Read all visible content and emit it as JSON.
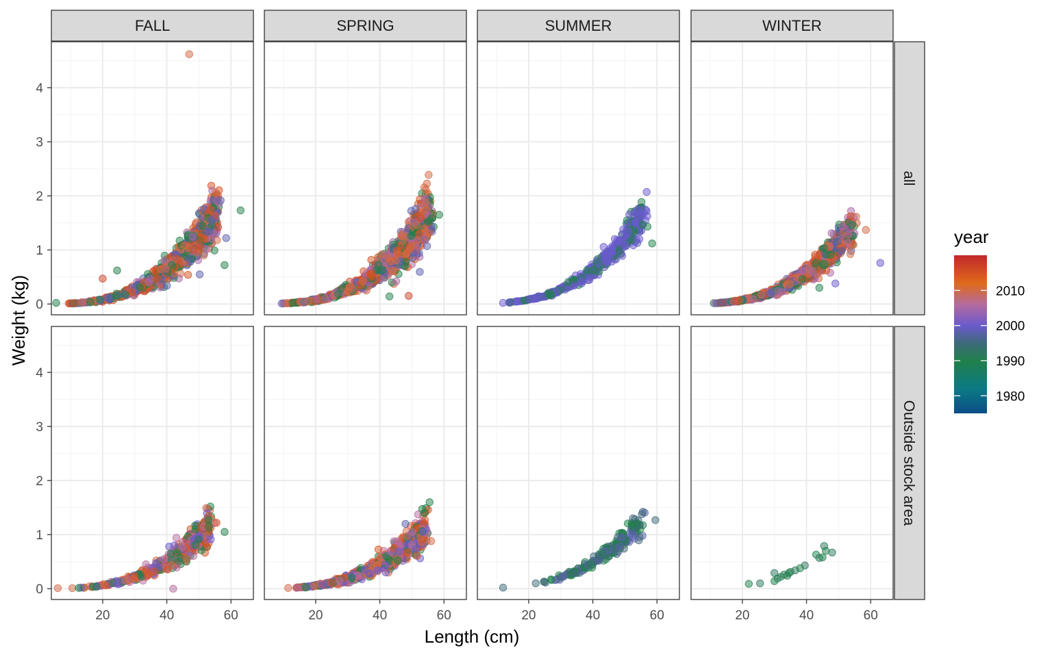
{
  "chart_data": {
    "type": "scatter",
    "facet_cols": [
      "FALL",
      "SPRING",
      "SUMMER",
      "WINTER"
    ],
    "facet_rows": [
      "all",
      "Outside stock area"
    ],
    "xlabel": "Length (cm)",
    "ylabel": "Weight (kg)",
    "xlim": [
      4,
      67
    ],
    "ylim": [
      -0.2,
      4.85
    ],
    "x_ticks": [
      20,
      40,
      60
    ],
    "y_ticks": [
      0,
      1,
      2,
      3,
      4
    ],
    "grid": true,
    "point_alpha": 0.5,
    "legend": {
      "title": "year",
      "placement": "right",
      "type": "colorbar",
      "range": [
        1975,
        2020
      ],
      "ticks": [
        1980,
        1990,
        2000,
        2010
      ],
      "stops": [
        {
          "year": 1975,
          "color": "#0b4d87"
        },
        {
          "year": 1982,
          "color": "#0b7a84"
        },
        {
          "year": 1990,
          "color": "#20804a"
        },
        {
          "year": 1995,
          "color": "#3f6a7a"
        },
        {
          "year": 2000,
          "color": "#6a5acd"
        },
        {
          "year": 2006,
          "color": "#b56b9d"
        },
        {
          "year": 2012,
          "color": "#e06a1b"
        },
        {
          "year": 2020,
          "color": "#c0282b"
        }
      ]
    },
    "panels": [
      {
        "col": "FALL",
        "row": "all",
        "xmin": 8,
        "xmax": 56,
        "a": 1.05e-05,
        "b": 2.98,
        "spread": 0.16,
        "n": 900,
        "years": [
          2015,
          2010,
          2005,
          1998,
          1990
        ],
        "outliers": [
          {
            "x": 47,
            "y": 4.62,
            "year": 2010
          },
          {
            "x": 63,
            "y": 1.73,
            "year": 1990
          },
          {
            "x": 5.5,
            "y": 0.02,
            "year": 1990
          },
          {
            "x": 20,
            "y": 0.47,
            "year": 2017
          },
          {
            "x": 24.5,
            "y": 0.62,
            "year": 1990
          },
          {
            "x": 54,
            "y": 1.55,
            "year": 1998
          },
          {
            "x": 56,
            "y": 1.42,
            "year": 2017
          },
          {
            "x": 58.5,
            "y": 1.22,
            "year": 1998
          },
          {
            "x": 58,
            "y": 0.72,
            "year": 1990
          }
        ]
      },
      {
        "col": "SPRING",
        "row": "all",
        "xmin": 8,
        "xmax": 56,
        "a": 1.05e-05,
        "b": 2.98,
        "spread": 0.17,
        "n": 900,
        "years": [
          2015,
          2010,
          2005,
          1998,
          1990
        ],
        "outliers": [
          {
            "x": 58.5,
            "y": 1.65,
            "year": 1990
          },
          {
            "x": 55,
            "y": 1.52,
            "year": 1990
          },
          {
            "x": 54,
            "y": 1.4,
            "year": 2010
          },
          {
            "x": 49,
            "y": 0.15,
            "year": 2017
          },
          {
            "x": 43,
            "y": 0.14,
            "year": 1990
          }
        ]
      },
      {
        "col": "SUMMER",
        "row": "all",
        "xmin": 11,
        "xmax": 56,
        "a": 1.05e-05,
        "b": 2.98,
        "spread": 0.1,
        "n": 420,
        "years": [
          2000,
          2000,
          2000,
          1998,
          1990
        ],
        "outliers": [
          {
            "x": 58.5,
            "y": 1.12,
            "year": 1990
          },
          {
            "x": 52,
            "y": 1.18,
            "year": 1990
          },
          {
            "x": 12,
            "y": 0.02,
            "year": 2000
          }
        ]
      },
      {
        "col": "WINTER",
        "row": "all",
        "xmin": 9,
        "xmax": 54,
        "a": 9.5e-06,
        "b": 2.98,
        "spread": 0.13,
        "n": 900,
        "years": [
          2015,
          2010,
          2005,
          1998,
          1990
        ],
        "outliers": [
          {
            "x": 58.5,
            "y": 1.37,
            "year": 2010
          },
          {
            "x": 63,
            "y": 0.76,
            "year": 2000
          },
          {
            "x": 53,
            "y": 1.13,
            "year": 2006
          },
          {
            "x": 49,
            "y": 0.38,
            "year": 2000
          },
          {
            "x": 44,
            "y": 0.3,
            "year": 1990
          }
        ]
      },
      {
        "col": "FALL",
        "row": "Outside stock area",
        "xmin": 9,
        "xmax": 54,
        "a": 8.3e-06,
        "b": 2.98,
        "spread": 0.15,
        "n": 420,
        "years": [
          2015,
          2010,
          2006,
          2000,
          1990
        ],
        "outliers": [
          {
            "x": 6,
            "y": 0.01,
            "year": 2010
          },
          {
            "x": 55.5,
            "y": 1.22,
            "year": 2015
          },
          {
            "x": 53,
            "y": 1.27,
            "year": 1990
          },
          {
            "x": 58,
            "y": 1.05,
            "year": 1990
          },
          {
            "x": 42,
            "y": 0.0,
            "year": 2006
          },
          {
            "x": 33.5,
            "y": 0.45,
            "year": 2006
          }
        ]
      },
      {
        "col": "SPRING",
        "row": "Outside stock area",
        "xmin": 9,
        "xmax": 54,
        "a": 7.5e-06,
        "b": 2.98,
        "spread": 0.16,
        "n": 700,
        "years": [
          2015,
          2010,
          2006,
          2000,
          1990
        ],
        "outliers": [
          {
            "x": 55.5,
            "y": 1.6,
            "year": 1990
          },
          {
            "x": 56,
            "y": 0.88,
            "year": 2010
          },
          {
            "x": 53.5,
            "y": 1.05,
            "year": 2000
          },
          {
            "x": 48,
            "y": 1.2,
            "year": 1998
          }
        ]
      },
      {
        "col": "SUMMER",
        "row": "Outside stock area",
        "xmin": 23,
        "xmax": 55,
        "a": 8.3e-06,
        "b": 2.98,
        "spread": 0.1,
        "n": 170,
        "years": [
          1995,
          1995,
          1990,
          1990,
          1998
        ],
        "outliers": [
          {
            "x": 12,
            "y": 0.02,
            "year": 1995
          },
          {
            "x": 59.5,
            "y": 1.27,
            "year": 1995
          },
          {
            "x": 52.5,
            "y": 1.3,
            "year": 1995
          }
        ]
      },
      {
        "col": "WINTER",
        "row": "Outside stock area",
        "xmin": 30,
        "xmax": 48,
        "a": 7.2e-06,
        "b": 2.98,
        "spread": 0.08,
        "n": 0,
        "years": [
          1990
        ],
        "points": [
          {
            "x": 22,
            "y": 0.09,
            "year": 1990
          },
          {
            "x": 25.5,
            "y": 0.1,
            "year": 1992
          },
          {
            "x": 30,
            "y": 0.14,
            "year": 1990
          },
          {
            "x": 30,
            "y": 0.29,
            "year": 1992
          },
          {
            "x": 31,
            "y": 0.19,
            "year": 1990
          },
          {
            "x": 32,
            "y": 0.22,
            "year": 1992
          },
          {
            "x": 33,
            "y": 0.26,
            "year": 1990
          },
          {
            "x": 34,
            "y": 0.24,
            "year": 1990
          },
          {
            "x": 34.5,
            "y": 0.29,
            "year": 1992
          },
          {
            "x": 35,
            "y": 0.31,
            "year": 1990
          },
          {
            "x": 36.5,
            "y": 0.34,
            "year": 1992
          },
          {
            "x": 38,
            "y": 0.38,
            "year": 1990
          },
          {
            "x": 39.5,
            "y": 0.43,
            "year": 1992
          },
          {
            "x": 43,
            "y": 0.63,
            "year": 1990
          },
          {
            "x": 44,
            "y": 0.57,
            "year": 1992
          },
          {
            "x": 45,
            "y": 0.58,
            "year": 1990
          },
          {
            "x": 45.5,
            "y": 0.79,
            "year": 1992
          },
          {
            "x": 46,
            "y": 0.7,
            "year": 1990
          },
          {
            "x": 48,
            "y": 0.67,
            "year": 1992
          }
        ]
      }
    ]
  }
}
